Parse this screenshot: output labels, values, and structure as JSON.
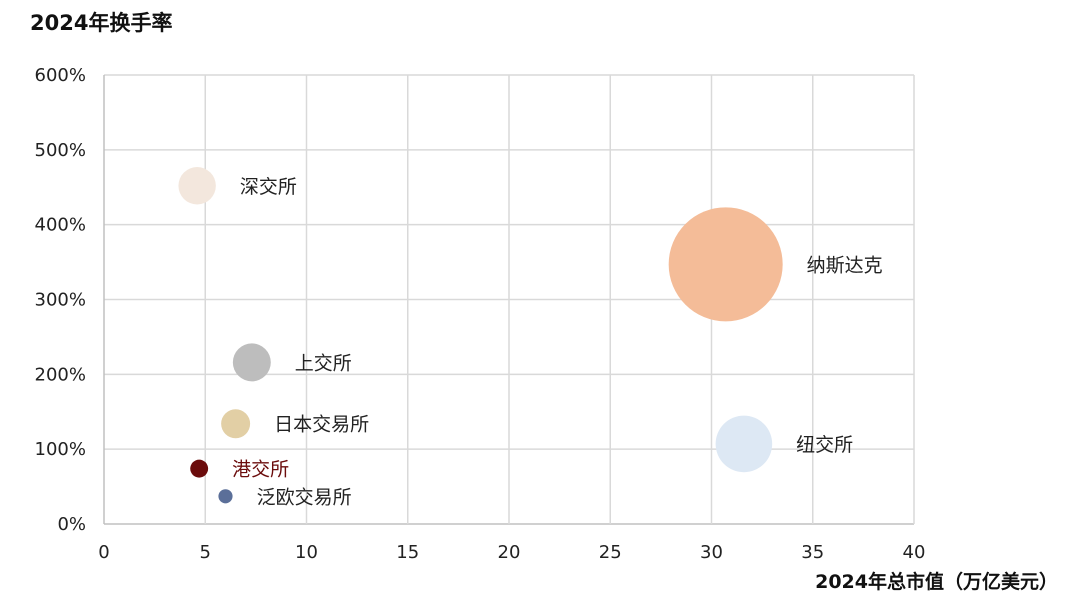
{
  "chart_data": {
    "type": "scatter",
    "title": "2024年换手率",
    "xlabel": "2024年总市值（万亿美元）",
    "ylabel": "",
    "xlim": [
      0,
      40
    ],
    "ylim": [
      0,
      600
    ],
    "x_ticks": [
      0,
      5,
      10,
      15,
      20,
      25,
      30,
      35,
      40
    ],
    "y_ticks": [
      0,
      100,
      200,
      300,
      400,
      500,
      600
    ],
    "y_tick_labels": [
      "0%",
      "100%",
      "200%",
      "300%",
      "400%",
      "500%",
      "600%"
    ],
    "grid": true,
    "points": [
      {
        "label": "深交所",
        "x": 4.6,
        "y": 452,
        "size": 0.7,
        "color": "#f3e7dd",
        "label_color": "#222222"
      },
      {
        "label": "纳斯达克",
        "x": 30.7,
        "y": 347,
        "size": 6.5,
        "color": "#f4bc98",
        "label_color": "#222222"
      },
      {
        "label": "上交所",
        "x": 7.3,
        "y": 216,
        "size": 0.72,
        "color": "#bdbdbd",
        "label_color": "#222222"
      },
      {
        "label": "日本交易所",
        "x": 6.5,
        "y": 134,
        "size": 0.42,
        "color": "#e2cfa5",
        "label_color": "#222222"
      },
      {
        "label": "纽交所",
        "x": 31.6,
        "y": 107,
        "size": 1.6,
        "color": "#dde8f4",
        "label_color": "#222222"
      },
      {
        "label": "港交所",
        "x": 4.7,
        "y": 74,
        "size": 0.16,
        "color": "#6b0c0c",
        "label_color": "#6b0c0c"
      },
      {
        "label": "泛欧交易所",
        "x": 6.0,
        "y": 37,
        "size": 0.1,
        "color": "#5b6f99",
        "label_color": "#222222"
      }
    ]
  }
}
